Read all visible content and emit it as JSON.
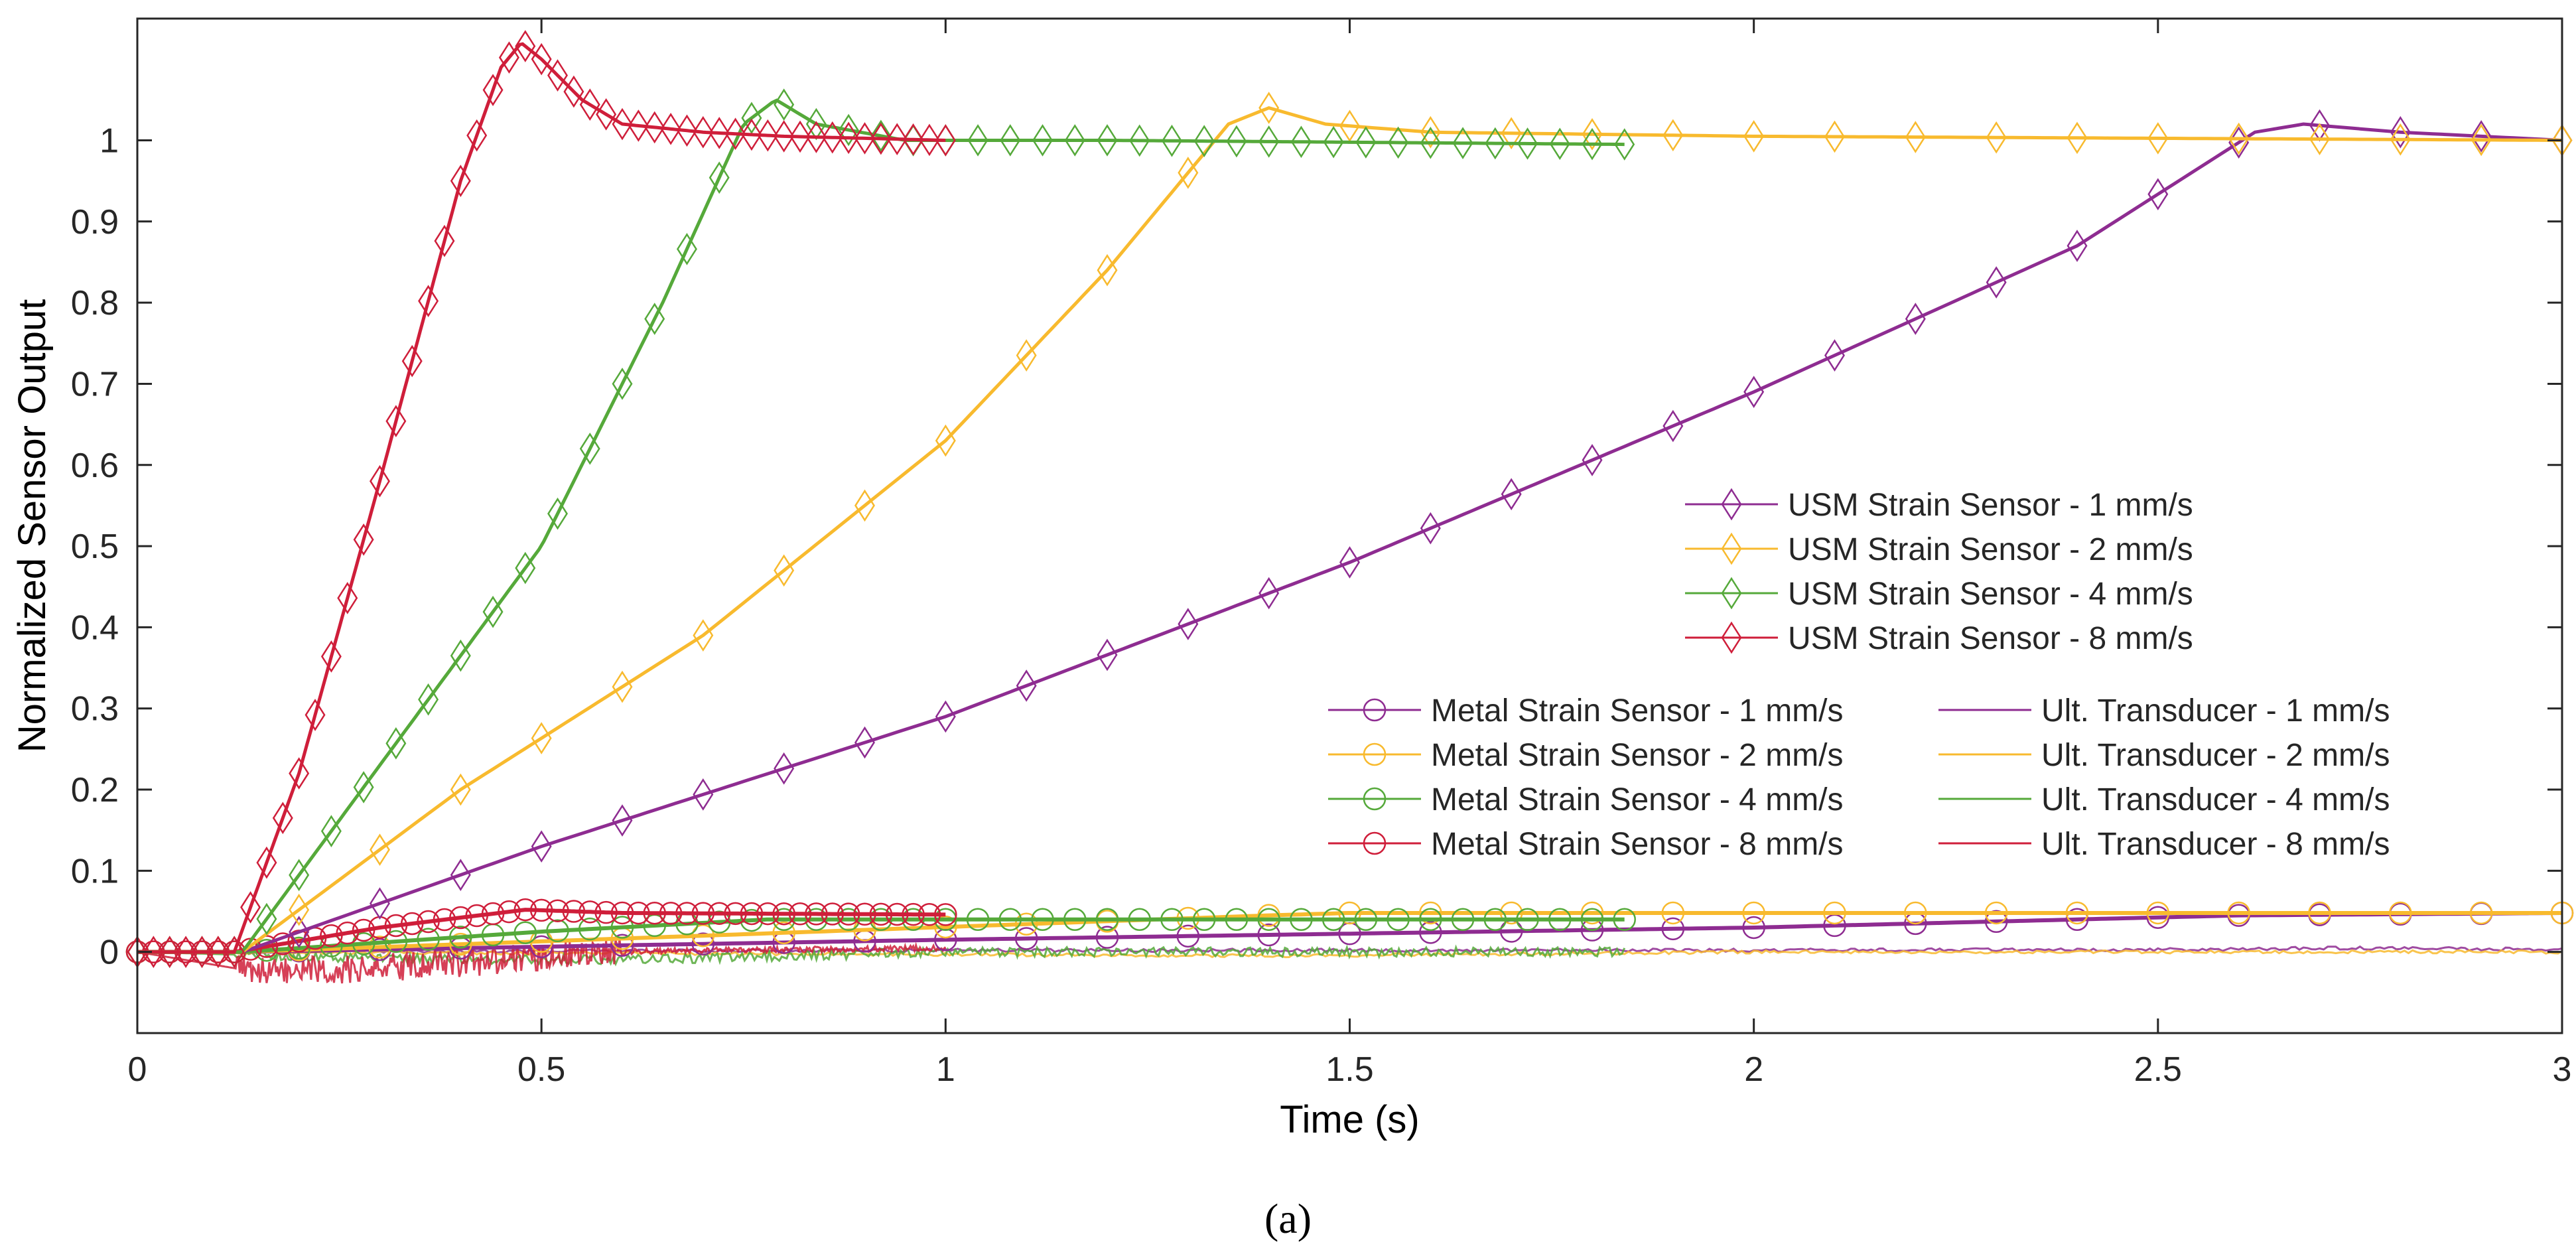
{
  "chart_data": {
    "type": "line",
    "title": "",
    "xlabel": "Time (s)",
    "ylabel": "Normalized Sensor Output",
    "xlim": [
      0,
      3
    ],
    "ylim": [
      -0.1,
      1.15
    ],
    "xticks": [
      0,
      0.5,
      1,
      1.5,
      2,
      2.5,
      3
    ],
    "xtick_labels": [
      "0",
      "0.5",
      "1",
      "1.5",
      "2",
      "2.5",
      "3"
    ],
    "yticks": [
      0,
      0.1,
      0.2,
      0.3,
      0.4,
      0.5,
      0.6,
      0.7,
      0.8,
      0.9,
      1
    ],
    "ytick_labels": [
      "0",
      "0.1",
      "0.2",
      "0.3",
      "0.4",
      "0.5",
      "0.6",
      "0.7",
      "0.8",
      "0.9",
      "1"
    ],
    "grid": false,
    "caption": "(a)",
    "colors": {
      "1": "#8e2c91",
      "2": "#f8ba2e",
      "4": "#55a93a",
      "8": "#cf1e3a"
    },
    "series": [
      {
        "name": "USM Strain Sensor - 1 mm/s",
        "group": "usm",
        "speed": "1",
        "marker": "diamond",
        "x": [
          0,
          0.13,
          0.5,
          1.0,
          1.5,
          2.0,
          2.4,
          2.62,
          2.68,
          2.8,
          3.0
        ],
        "y": [
          0,
          0,
          0.13,
          0.29,
          0.48,
          0.69,
          0.87,
          1.01,
          1.02,
          1.01,
          1.0
        ]
      },
      {
        "name": "USM Strain Sensor - 2 mm/s",
        "group": "usm",
        "speed": "2",
        "marker": "diamond",
        "x": [
          0,
          0.13,
          0.4,
          0.7,
          1.0,
          1.2,
          1.35,
          1.4,
          1.47,
          1.6,
          2.0,
          3.0
        ],
        "y": [
          0,
          0,
          0.2,
          0.39,
          0.63,
          0.84,
          1.02,
          1.04,
          1.02,
          1.01,
          1.005,
          1.0
        ]
      },
      {
        "name": "USM Strain Sensor - 4 mm/s",
        "group": "usm",
        "speed": "4",
        "marker": "diamond",
        "x": [
          0,
          0.13,
          0.3,
          0.5,
          0.65,
          0.75,
          0.79,
          0.84,
          0.95,
          1.2,
          1.84
        ],
        "y": [
          0,
          0,
          0.23,
          0.5,
          0.8,
          1.02,
          1.05,
          1.02,
          1.0,
          1.0,
          0.995
        ]
      },
      {
        "name": "USM Strain Sensor - 8 mm/s",
        "group": "usm",
        "speed": "8",
        "marker": "diamond",
        "x": [
          0,
          0.12,
          0.2,
          0.3,
          0.4,
          0.45,
          0.475,
          0.5,
          0.55,
          0.6,
          0.7,
          0.8,
          1.0
        ],
        "y": [
          0,
          0,
          0.22,
          0.58,
          0.95,
          1.09,
          1.12,
          1.1,
          1.05,
          1.02,
          1.01,
          1.005,
          1.0
        ]
      },
      {
        "name": "Metal Strain Sensor - 1 mm/s",
        "group": "metal",
        "speed": "1",
        "marker": "circle",
        "x": [
          0,
          0.13,
          1.0,
          2.0,
          2.6,
          3.0
        ],
        "y": [
          0,
          0,
          0.015,
          0.03,
          0.045,
          0.048
        ]
      },
      {
        "name": "Metal Strain Sensor - 2 mm/s",
        "group": "metal",
        "speed": "2",
        "marker": "circle",
        "x": [
          0,
          0.13,
          0.7,
          1.4,
          1.5,
          2.0,
          3.0
        ],
        "y": [
          0,
          0,
          0.02,
          0.045,
          0.048,
          0.048,
          0.048
        ]
      },
      {
        "name": "Metal Strain Sensor - 4 mm/s",
        "group": "metal",
        "speed": "4",
        "marker": "circle",
        "x": [
          0,
          0.13,
          0.5,
          0.78,
          1.0,
          1.84
        ],
        "y": [
          0,
          0,
          0.025,
          0.04,
          0.04,
          0.04
        ]
      },
      {
        "name": "Metal Strain Sensor - 8 mm/s",
        "group": "metal",
        "speed": "8",
        "marker": "circle",
        "x": [
          0,
          0.12,
          0.3,
          0.48,
          0.6,
          1.0
        ],
        "y": [
          0,
          0,
          0.03,
          0.052,
          0.048,
          0.046
        ]
      },
      {
        "name": "Ult. Transducer - 1 mm/s",
        "group": "ult",
        "speed": "1",
        "marker": "none",
        "x": [
          0,
          1.0,
          2.0,
          2.6,
          2.7,
          3.0
        ],
        "y": [
          0,
          0.002,
          0.002,
          0.003,
          0.005,
          0.003
        ]
      },
      {
        "name": "Ult. Transducer - 2 mm/s",
        "group": "ult",
        "speed": "2",
        "marker": "none",
        "x": [
          0,
          1.0,
          1.4,
          2.0,
          3.0
        ],
        "y": [
          0,
          -0.003,
          -0.005,
          0.0,
          0.0
        ]
      },
      {
        "name": "Ult. Transducer - 4 mm/s",
        "group": "ult",
        "speed": "4",
        "marker": "none",
        "x": [
          0,
          0.3,
          0.6,
          0.8,
          1.0,
          1.84
        ],
        "y": [
          0,
          -0.008,
          -0.01,
          -0.005,
          0.0,
          0.0
        ]
      },
      {
        "name": "Ult. Transducer - 8 mm/s",
        "group": "ult",
        "speed": "8",
        "marker": "none",
        "x": [
          0,
          0.15,
          0.3,
          0.45,
          0.55,
          1.0
        ],
        "y": [
          0,
          -0.025,
          -0.02,
          -0.01,
          0.0,
          0.005
        ]
      }
    ],
    "legend": {
      "usm_block": [
        "USM Strain Sensor - 1 mm/s",
        "USM Strain Sensor - 2 mm/s",
        "USM Strain Sensor - 4 mm/s",
        "USM Strain Sensor - 8 mm/s"
      ],
      "metal_column": [
        "Metal Strain Sensor - 1 mm/s",
        "Metal Strain Sensor - 2 mm/s",
        "Metal Strain Sensor - 4 mm/s",
        "Metal Strain Sensor - 8 mm/s"
      ],
      "ult_column": [
        "Ult. Transducer - 1 mm/s",
        "Ult. Transducer - 2 mm/s",
        "Ult. Transducer - 4 mm/s",
        "Ult. Transducer - 8 mm/s"
      ],
      "placement": "center-right"
    }
  }
}
